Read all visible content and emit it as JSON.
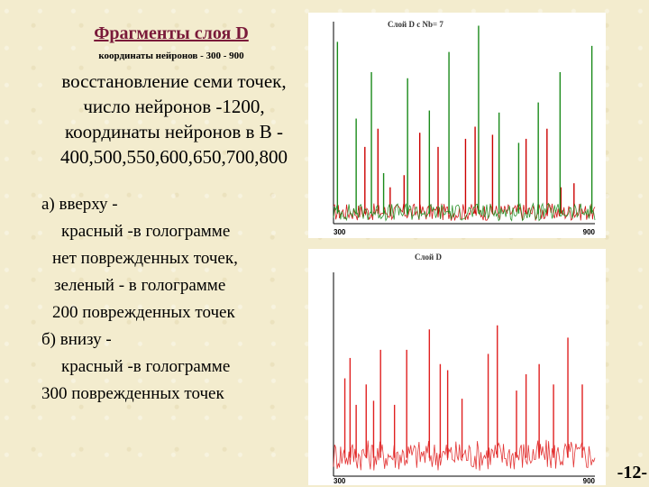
{
  "slide": {
    "title": "Фрагменты слоя D",
    "subtitle": "координаты нейронов  - 300 - 900",
    "paragraph_top": [
      "восстановление семи точек,",
      "число нейронов -1200,",
      "координаты нейронов в B -",
      "400,500,550,600,650,700,800"
    ],
    "paragraph_bottom": [
      "а) вверху -",
      "красный -в голограмме",
      "нет поврежденных точек,",
      "зеленый - в голограмме",
      "200 поврежденных точек",
      "б) внизу -",
      "красный -в голограмме",
      "300 поврежденных точек"
    ],
    "page_number": "-12-"
  },
  "chart_data": [
    {
      "type": "line",
      "title": "Слой D с Nb= 7",
      "x_tick_labels": [
        "300",
        "900"
      ],
      "xlim": [
        300,
        900
      ],
      "ylim": [
        0,
        1
      ],
      "grid": false,
      "noise_floor": 0.1,
      "series": [
        {
          "color": "#cc0000",
          "peaks": [
            [
              372,
              0.38
            ],
            [
              402,
              0.47
            ],
            [
              430,
              0.18
            ],
            [
              462,
              0.24
            ],
            [
              498,
              0.45
            ],
            [
              540,
              0.38
            ],
            [
              603,
              0.42
            ],
            [
              625,
              0.48
            ],
            [
              665,
              0.44
            ],
            [
              742,
              0.42
            ],
            [
              790,
              0.47
            ],
            [
              822,
              0.18
            ],
            [
              852,
              0.2
            ]
          ]
        },
        {
          "color": "#1a8a1a",
          "peaks": [
            [
              309,
              0.9
            ],
            [
              352,
              0.52
            ],
            [
              387,
              0.75
            ],
            [
              415,
              0.25
            ],
            [
              470,
              0.72
            ],
            [
              520,
              0.56
            ],
            [
              565,
              0.85
            ],
            [
              633,
              0.98
            ],
            [
              680,
              0.55
            ],
            [
              725,
              0.4
            ],
            [
              770,
              0.6
            ],
            [
              820,
              0.75
            ],
            [
              893,
              0.88
            ]
          ]
        }
      ]
    },
    {
      "type": "line",
      "title": "Слой D",
      "x_tick_labels": [
        "300",
        "900"
      ],
      "xlim": [
        300,
        900
      ],
      "ylim": [
        0,
        1
      ],
      "grid": false,
      "noise_floor": 0.18,
      "series": [
        {
          "color": "#e02020",
          "peaks": [
            [
              326,
              0.48
            ],
            [
              338,
              0.58
            ],
            [
              352,
              0.35
            ],
            [
              375,
              0.45
            ],
            [
              392,
              0.37
            ],
            [
              408,
              0.62
            ],
            [
              440,
              0.35
            ],
            [
              468,
              0.62
            ],
            [
              520,
              0.72
            ],
            [
              545,
              0.55
            ],
            [
              562,
              0.52
            ],
            [
              595,
              0.38
            ],
            [
              655,
              0.6
            ],
            [
              676,
              0.74
            ],
            [
              720,
              0.42
            ],
            [
              742,
              0.5
            ],
            [
              772,
              0.55
            ],
            [
              805,
              0.45
            ],
            [
              838,
              0.68
            ],
            [
              871,
              0.45
            ]
          ]
        }
      ]
    }
  ]
}
